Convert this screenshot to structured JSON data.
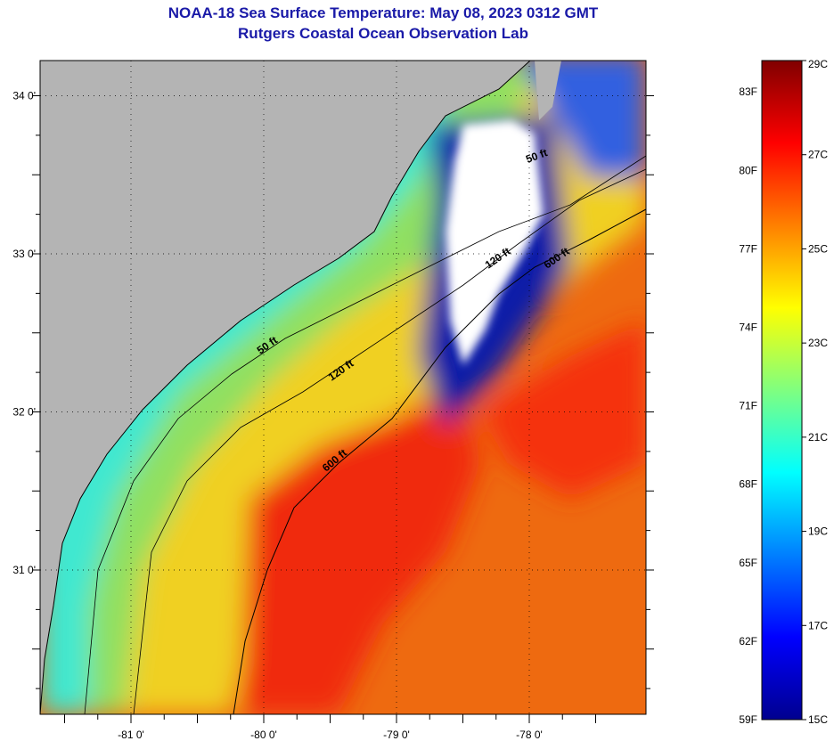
{
  "title": "NOAA-18 Sea Surface Temperature:  May 08, 2023 0312 GMT",
  "subtitle": "Rutgers Coastal Ocean Observation Lab",
  "map": {
    "lon_ticks": [
      {
        "value": -81,
        "label": "-81 0'"
      },
      {
        "value": -80,
        "label": "-80 0'"
      },
      {
        "value": -79,
        "label": "-79 0'"
      },
      {
        "value": -78,
        "label": "-78 0'"
      }
    ],
    "lat_ticks": [
      {
        "value": 34,
        "label": "34 0'"
      },
      {
        "value": 33,
        "label": "33 0'"
      },
      {
        "value": 32,
        "label": "32 0'"
      },
      {
        "value": 31,
        "label": "31 0'"
      }
    ],
    "contour_labels": [
      "50 ft",
      "120 ft",
      "600 ft",
      "50 ft",
      "120 ft",
      "600 ft"
    ],
    "colors": {
      "land": "#b4b4b4",
      "cloud": "#ffffff"
    }
  },
  "colorbar": {
    "range_c": [
      15,
      29
    ],
    "fahrenheit": [
      {
        "value": 83,
        "label": "83F"
      },
      {
        "value": 80,
        "label": "80F"
      },
      {
        "value": 77,
        "label": "77F"
      },
      {
        "value": 74,
        "label": "74F"
      },
      {
        "value": 71,
        "label": "71F"
      },
      {
        "value": 68,
        "label": "68F"
      },
      {
        "value": 65,
        "label": "65F"
      },
      {
        "value": 62,
        "label": "62F"
      },
      {
        "value": 59,
        "label": "59F"
      }
    ],
    "celsius": [
      {
        "value": 29,
        "label": "29C"
      },
      {
        "value": 27,
        "label": "27C"
      },
      {
        "value": 25,
        "label": "25C"
      },
      {
        "value": 23,
        "label": "23C"
      },
      {
        "value": 21,
        "label": "21C"
      },
      {
        "value": 19,
        "label": "19C"
      },
      {
        "value": 17,
        "label": "17C"
      },
      {
        "value": 15,
        "label": "15C"
      }
    ]
  }
}
